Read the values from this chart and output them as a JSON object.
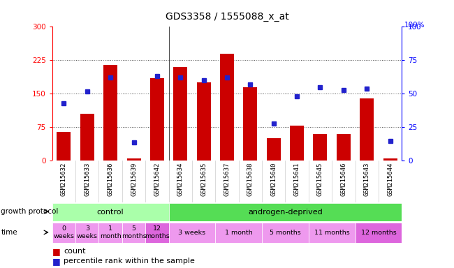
{
  "title": "GDS3358 / 1555088_x_at",
  "samples": [
    "GSM215632",
    "GSM215633",
    "GSM215636",
    "GSM215639",
    "GSM215642",
    "GSM215634",
    "GSM215635",
    "GSM215637",
    "GSM215638",
    "GSM215640",
    "GSM215641",
    "GSM215645",
    "GSM215646",
    "GSM215643",
    "GSM215644"
  ],
  "counts": [
    65,
    105,
    215,
    5,
    185,
    210,
    175,
    240,
    165,
    50,
    78,
    60,
    60,
    140,
    5
  ],
  "percentile_ranks": [
    43,
    52,
    62,
    14,
    63,
    62,
    60,
    62,
    57,
    28,
    48,
    55,
    53,
    54,
    15
  ],
  "ylim_left": [
    0,
    300
  ],
  "ylim_right": [
    0,
    100
  ],
  "yticks_left": [
    0,
    75,
    150,
    225,
    300
  ],
  "yticks_right": [
    0,
    25,
    50,
    75,
    100
  ],
  "bar_color": "#cc0000",
  "marker_color": "#2222cc",
  "grid_color": "#555555",
  "bg_color": "#ffffff",
  "title_fontsize": 10,
  "control_color": "#aaffaa",
  "androgen_color": "#55dd55",
  "time_pink_light": "#ee99ee",
  "time_pink_dark": "#dd66dd",
  "time_groups": [
    {
      "label": "0\nweeks",
      "start": 0,
      "end": 1,
      "dark": false
    },
    {
      "label": "3\nweeks",
      "start": 1,
      "end": 2,
      "dark": false
    },
    {
      "label": "1\nmonth",
      "start": 2,
      "end": 3,
      "dark": false
    },
    {
      "label": "5\nmonths",
      "start": 3,
      "end": 4,
      "dark": false
    },
    {
      "label": "12\nmonths",
      "start": 4,
      "end": 5,
      "dark": true
    },
    {
      "label": "3 weeks",
      "start": 5,
      "end": 7,
      "dark": false
    },
    {
      "label": "1 month",
      "start": 7,
      "end": 9,
      "dark": false
    },
    {
      "label": "5 months",
      "start": 9,
      "end": 11,
      "dark": false
    },
    {
      "label": "11 months",
      "start": 11,
      "end": 13,
      "dark": false
    },
    {
      "label": "12 months",
      "start": 13,
      "end": 15,
      "dark": true
    }
  ]
}
